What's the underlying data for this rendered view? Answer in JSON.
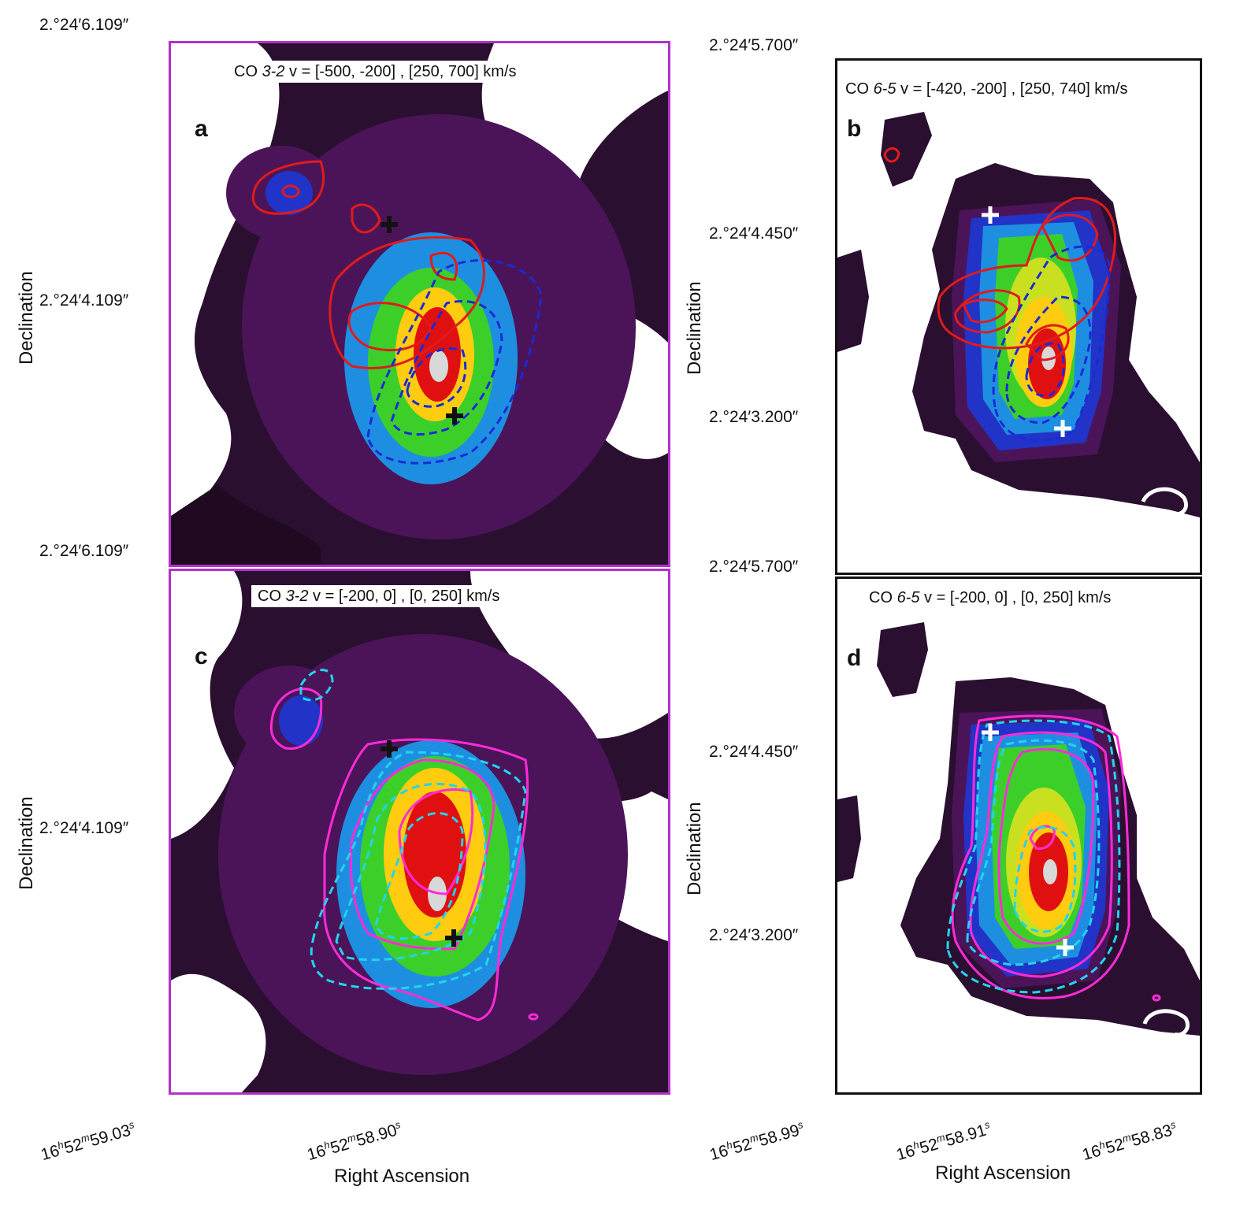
{
  "panels": [
    {
      "id": "a",
      "letter": "a",
      "caption_line": "CO",
      "caption_transition": "3-2",
      "caption_rest": "v = [-500, -200] , [250, 700] km/s",
      "contour_colors": [
        "#e01b1b",
        "#1a2ad6"
      ],
      "cross_color": "#111111"
    },
    {
      "id": "b",
      "letter": "b",
      "caption_line": "CO",
      "caption_transition": "6-5",
      "caption_rest": "v = [-420, -200] , [250, 740] km/s",
      "contour_colors": [
        "#e01b1b",
        "#1a2ad6"
      ],
      "cross_color": "#ffffff"
    },
    {
      "id": "c",
      "letter": "c",
      "caption_line": "CO",
      "caption_transition": "3-2",
      "caption_rest": "v = [-200, 0] , [0, 250] km/s",
      "contour_colors": [
        "#ff2bd8",
        "#22d4ee"
      ],
      "cross_color": "#111111"
    },
    {
      "id": "d",
      "letter": "d",
      "caption_line": "CO",
      "caption_transition": "6-5",
      "caption_rest": "v = [-200, 0] , [0, 250] km/s",
      "contour_colors": [
        "#ff2bd8",
        "#22d4ee"
      ],
      "cross_color": "#ffffff"
    }
  ],
  "left_axis": {
    "label": "Declination",
    "ticks_top": [
      "2.°24′6.109″",
      "2.°24′4.109″",
      "2.°24′6.109″"
    ],
    "ticks_bottom": [
      "2.°24′4.109″"
    ]
  },
  "right_axis": {
    "label": "Declination",
    "ticks_top": [
      "2.°24′5.700″",
      "2.°24′4.450″",
      "2.°24′3.200″",
      "2.°24′5.700″"
    ],
    "ticks_bottom": [
      "2.°24′4.450″",
      "2.°24′3.200″"
    ]
  },
  "bottom_axis_left": {
    "label": "Right Ascension",
    "ticks": [
      "16h52m59.03s",
      "16h52m58.90s"
    ]
  },
  "bottom_axis_right": {
    "label": "Right Ascension",
    "ticks": [
      "16h52m58.99s",
      "16h52m58.91s",
      "16h52m58.83s"
    ]
  },
  "colormap": [
    "#ffffff",
    "#1f0a22",
    "#4b1458",
    "#6a1f8a",
    "#2233c8",
    "#1e8fe0",
    "#22c0a0",
    "#3ccf2a",
    "#c8e020",
    "#ffcc10",
    "#ff6a00",
    "#e01010",
    "#d8d8d8"
  ]
}
